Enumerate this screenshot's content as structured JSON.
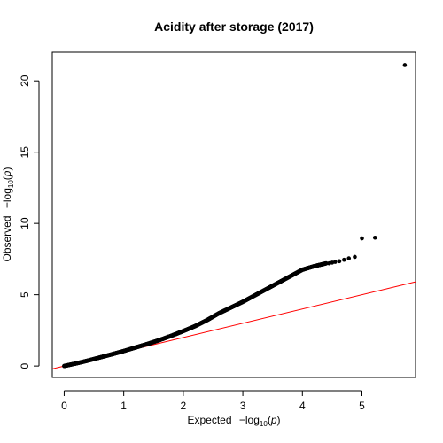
{
  "chart_data": {
    "type": "scatter",
    "title": "Acidity after storage (2017)",
    "xlabel": {
      "prefix": "Expected",
      "minus": "−log",
      "sub": "10",
      "open": "(",
      "var": "p",
      "close": ")"
    },
    "ylabel": {
      "prefix": "Observed",
      "minus": "−log",
      "sub": "10",
      "open": "(",
      "var": "p",
      "close": ")"
    },
    "xlim": [
      -0.2,
      5.9
    ],
    "ylim": [
      -0.8,
      22
    ],
    "xticks": [
      0,
      1,
      2,
      3,
      4,
      5
    ],
    "yticks": [
      0,
      5,
      10,
      15,
      20
    ],
    "xtick_labels": [
      "0",
      "1",
      "2",
      "3",
      "4",
      "5"
    ],
    "ytick_labels": [
      "0",
      "5",
      "10",
      "15",
      "20"
    ],
    "point_color": "#000000",
    "reference_line": {
      "slope": 1,
      "intercept": 0,
      "color": "#ff0000"
    },
    "curve_points": [
      [
        0.0,
        0.0
      ],
      [
        0.2,
        0.18
      ],
      [
        0.4,
        0.38
      ],
      [
        0.6,
        0.6
      ],
      [
        0.8,
        0.82
      ],
      [
        1.0,
        1.05
      ],
      [
        1.2,
        1.3
      ],
      [
        1.4,
        1.55
      ],
      [
        1.6,
        1.82
      ],
      [
        1.8,
        2.12
      ],
      [
        2.0,
        2.45
      ],
      [
        2.2,
        2.8
      ],
      [
        2.4,
        3.22
      ],
      [
        2.6,
        3.7
      ],
      [
        2.8,
        4.1
      ],
      [
        3.0,
        4.5
      ],
      [
        3.2,
        4.95
      ],
      [
        3.4,
        5.4
      ],
      [
        3.6,
        5.85
      ],
      [
        3.8,
        6.3
      ],
      [
        4.0,
        6.75
      ],
      [
        4.2,
        7.0
      ],
      [
        4.4,
        7.2
      ]
    ],
    "points": [
      [
        4.45,
        7.2
      ],
      [
        4.5,
        7.25
      ],
      [
        4.55,
        7.3
      ],
      [
        4.62,
        7.35
      ],
      [
        4.7,
        7.45
      ],
      [
        4.78,
        7.55
      ],
      [
        4.88,
        7.65
      ],
      [
        5.0,
        8.95
      ],
      [
        5.22,
        9.0
      ],
      [
        5.72,
        21.1
      ]
    ]
  }
}
